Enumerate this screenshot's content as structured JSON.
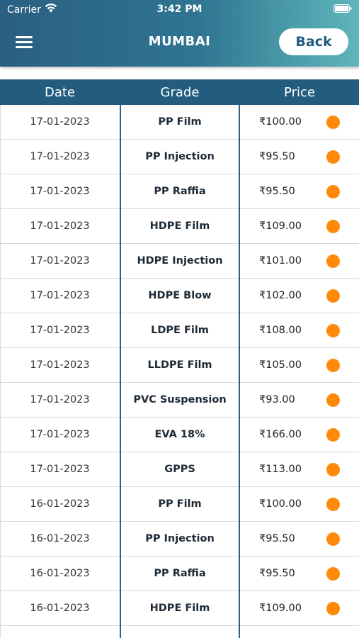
{
  "status_bar": {
    "carrier": "Carrier",
    "time": "3:42 PM"
  },
  "header": {
    "title": "MUMBAI",
    "back_label": "Back"
  },
  "table": {
    "columns": [
      "Date",
      "Grade",
      "Price"
    ],
    "status_color": "#ff8a0a",
    "rows": [
      {
        "date": "17-01-2023",
        "grade": "PP Film",
        "price": "₹100.00"
      },
      {
        "date": "17-01-2023",
        "grade": "PP Injection",
        "price": "₹95.50"
      },
      {
        "date": "17-01-2023",
        "grade": "PP Raffia",
        "price": "₹95.50"
      },
      {
        "date": "17-01-2023",
        "grade": "HDPE Film",
        "price": "₹109.00"
      },
      {
        "date": "17-01-2023",
        "grade": "HDPE Injection",
        "price": "₹101.00"
      },
      {
        "date": "17-01-2023",
        "grade": "HDPE Blow",
        "price": "₹102.00"
      },
      {
        "date": "17-01-2023",
        "grade": "LDPE Film",
        "price": "₹108.00"
      },
      {
        "date": "17-01-2023",
        "grade": "LLDPE Film",
        "price": "₹105.00"
      },
      {
        "date": "17-01-2023",
        "grade": "PVC Suspension",
        "price": "₹93.00"
      },
      {
        "date": "17-01-2023",
        "grade": "EVA 18%",
        "price": "₹166.00"
      },
      {
        "date": "17-01-2023",
        "grade": "GPPS",
        "price": "₹113.00"
      },
      {
        "date": "16-01-2023",
        "grade": "PP Film",
        "price": "₹100.00"
      },
      {
        "date": "16-01-2023",
        "grade": "PP Injection",
        "price": "₹95.50"
      },
      {
        "date": "16-01-2023",
        "grade": "PP Raffia",
        "price": "₹95.50"
      },
      {
        "date": "16-01-2023",
        "grade": "HDPE Film",
        "price": "₹109.00"
      }
    ]
  }
}
